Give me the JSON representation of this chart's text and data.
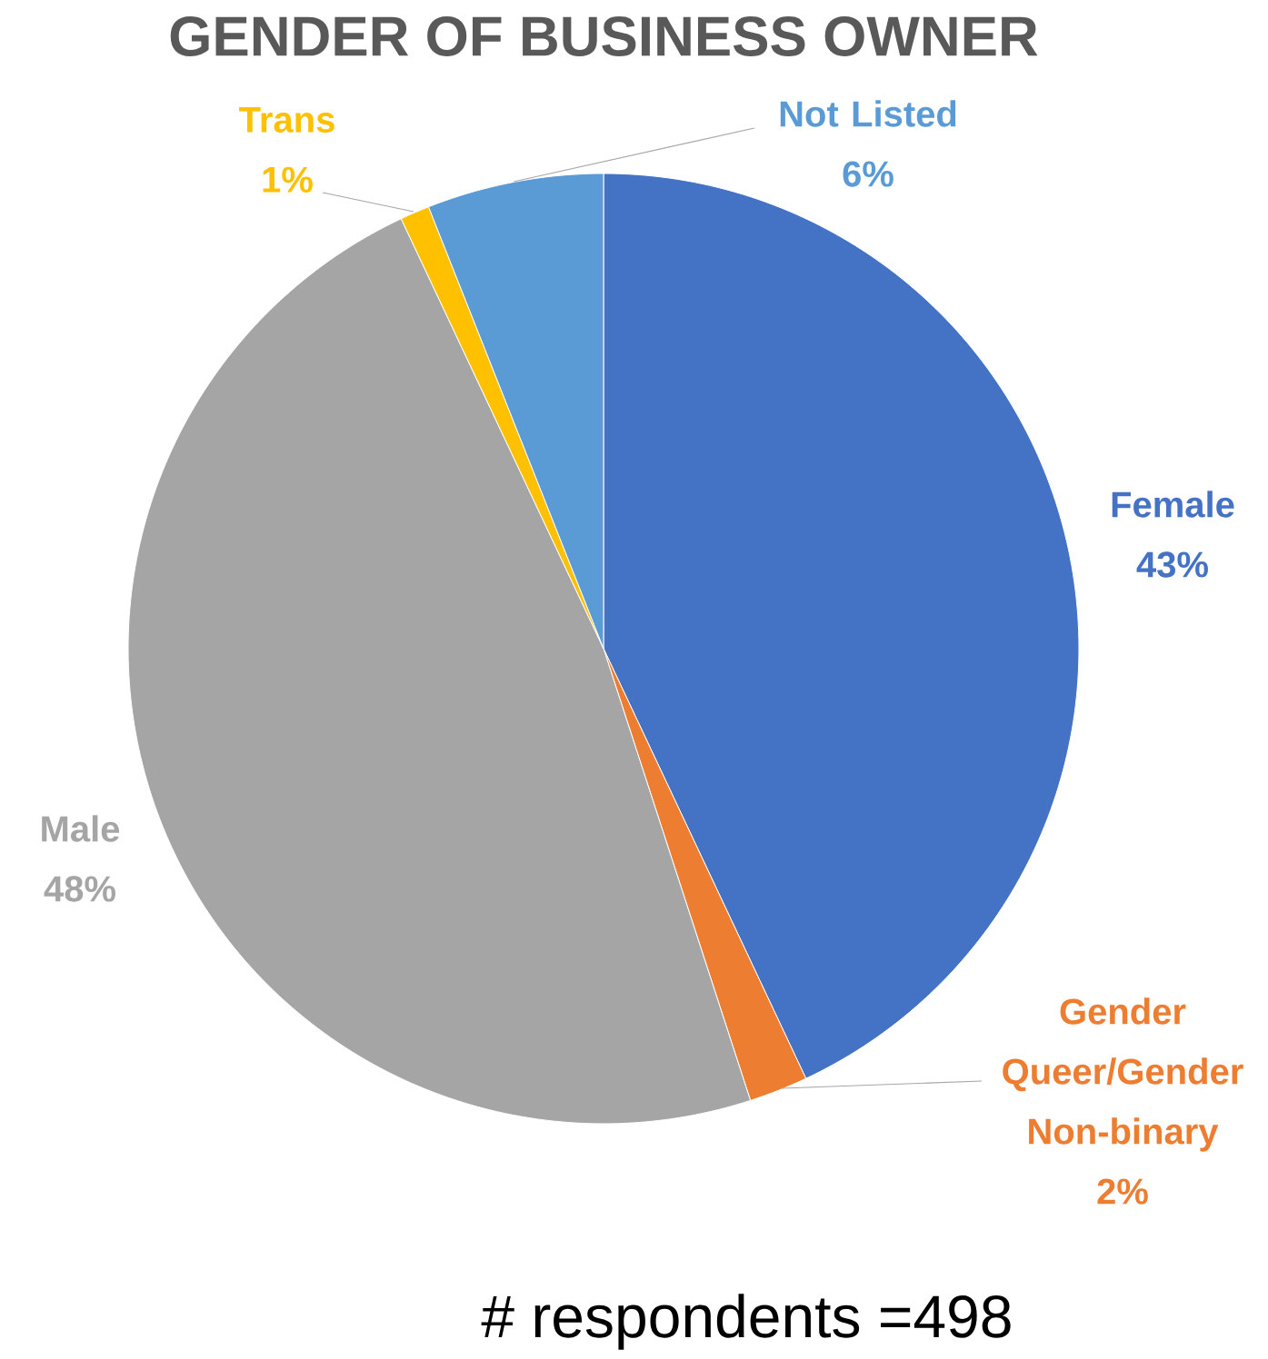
{
  "chart_data": {
    "type": "pie",
    "title": "GENDER OF BUSINESS OWNER",
    "categories": [
      "Female",
      "Gender Queer/Gender Non-binary",
      "Male",
      "Trans",
      "Not Listed"
    ],
    "values": [
      43,
      2,
      48,
      1,
      6
    ],
    "value_labels": [
      "43%",
      "2%",
      "48%",
      "1%",
      "6%"
    ],
    "colors": [
      "#4472c4",
      "#ed7d31",
      "#a5a5a5",
      "#ffc000",
      "#5b9bd5"
    ],
    "annotations": [
      "# respondents =498"
    ]
  }
}
